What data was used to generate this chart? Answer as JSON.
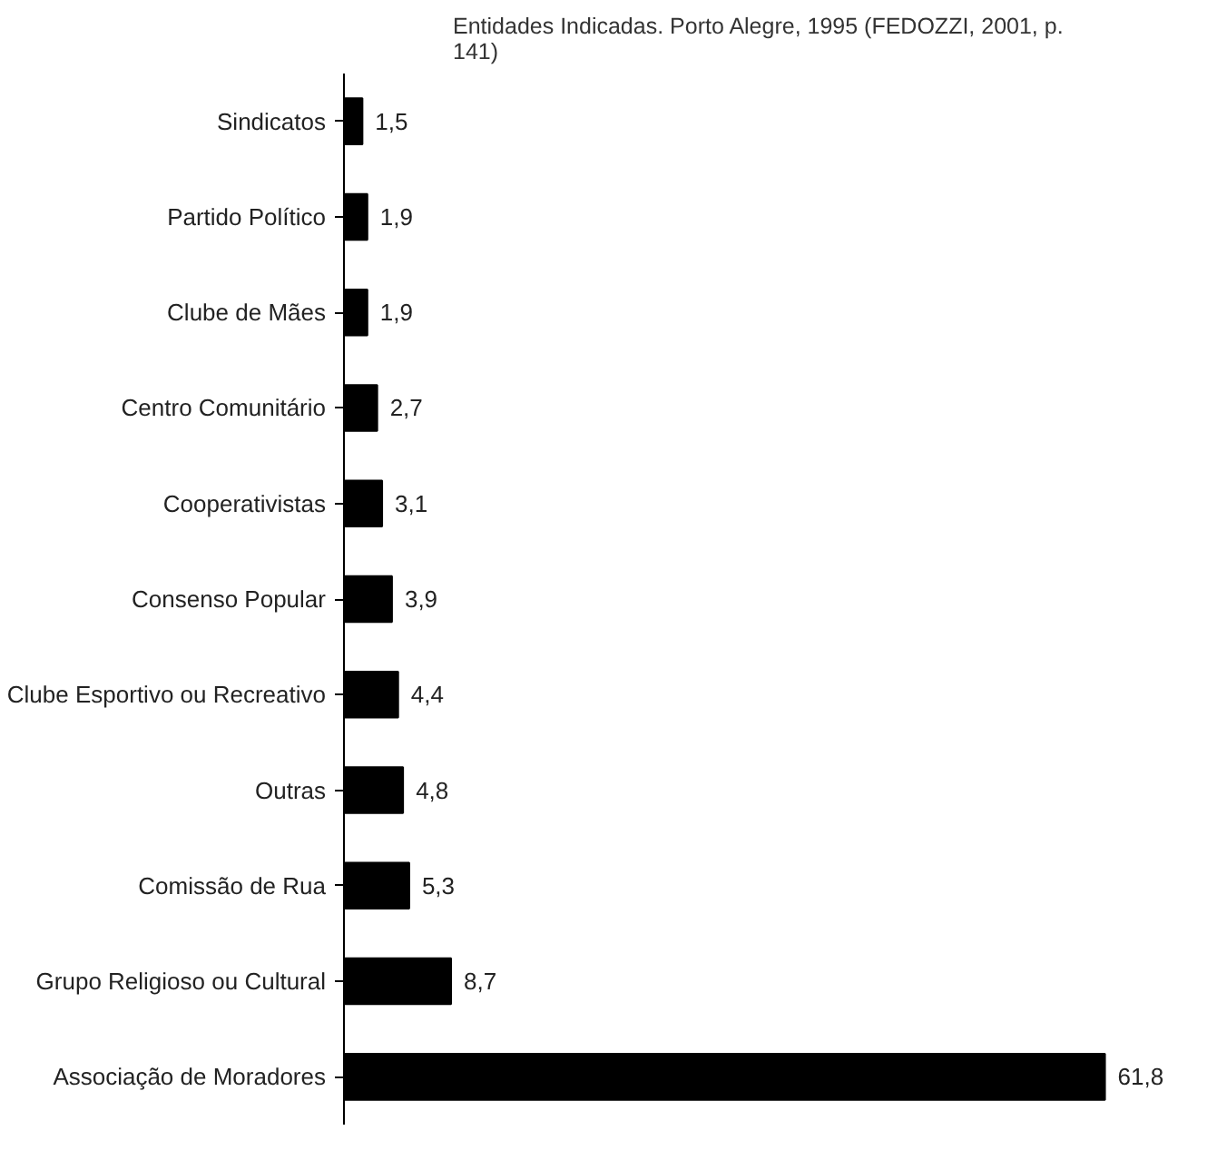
{
  "chart_data": {
    "type": "bar",
    "orientation": "horizontal",
    "title": "Entidades Indicadas. Porto Alegre, 1995 (FEDOZZI, 2001, p. 141)",
    "categories": [
      "Sindicatos",
      "Partido Político",
      "Clube de Mães",
      "Centro Comunitário",
      "Cooperativistas",
      "Consenso Popular",
      "Clube Esportivo ou Recreativo",
      "Outras",
      "Comissão de Rua",
      "Grupo Religioso ou Cultural",
      "Associação de Moradores"
    ],
    "values": [
      1.5,
      1.9,
      1.9,
      2.7,
      3.1,
      3.9,
      4.4,
      4.8,
      5.3,
      8.7,
      61.8
    ],
    "value_labels": [
      "1,5",
      "1,9",
      "1,9",
      "2,7",
      "3,1",
      "3,9",
      "4,4",
      "4,8",
      "5,3",
      "8,7",
      "61,8"
    ],
    "color": "#000000",
    "grid": false,
    "tick_labels": "y"
  }
}
